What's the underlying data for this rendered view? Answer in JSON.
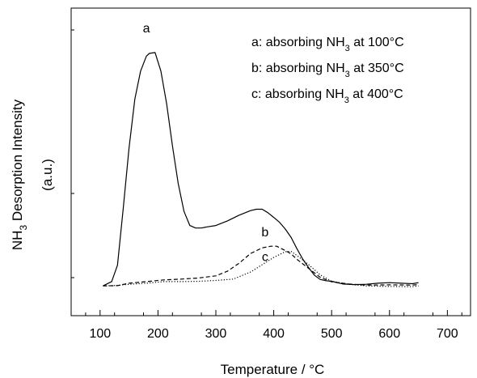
{
  "chart_data": {
    "type": "line",
    "xlabel": "Temperature / °C",
    "ylabel": "NH3 Desorption Intensity",
    "ylabel_sub_index": "3",
    "ylabel_unit": "(a.u.)",
    "xlim": [
      50,
      740
    ],
    "ylim": [
      0,
      100
    ],
    "x_ticks": [
      100,
      200,
      300,
      400,
      500,
      600,
      700
    ],
    "y_tick_labels": "none (arbitrary units)",
    "legend": {
      "placement": "top-right",
      "entries": [
        {
          "prefix": "a: absorbing NH",
          "sub": "3",
          "suffix": " at 100°C"
        },
        {
          "prefix": "b: absorbing NH",
          "sub": "3",
          "suffix": " at 350°C"
        },
        {
          "prefix": "c: absorbing NH",
          "sub": "3",
          "suffix": " at 400°C"
        }
      ]
    },
    "series": [
      {
        "name": "a",
        "line_style": "solid",
        "x": [
          105,
          120,
          130,
          140,
          150,
          160,
          170,
          180,
          185,
          195,
          205,
          215,
          225,
          235,
          245,
          255,
          265,
          275,
          285,
          300,
          320,
          340,
          360,
          370,
          380,
          390,
          400,
          410,
          420,
          430,
          440,
          450,
          460,
          470,
          480,
          490,
          500,
          520,
          540,
          560,
          580,
          600,
          620,
          640,
          650
        ],
        "y": [
          3.8,
          5.4,
          11.4,
          32.2,
          54.5,
          72.5,
          82.8,
          88.3,
          89.3,
          89.6,
          82.8,
          70.8,
          55.3,
          41.5,
          31.2,
          26.0,
          25.1,
          25.1,
          25.5,
          26.0,
          27.7,
          29.8,
          31.5,
          32.0,
          32.0,
          30.7,
          29.0,
          27.2,
          24.7,
          21.6,
          17.5,
          13.7,
          10.6,
          7.8,
          6.2,
          5.7,
          5.5,
          4.5,
          4.3,
          4.4,
          4.8,
          5.0,
          4.8,
          4.6,
          5.0
        ]
      },
      {
        "name": "b",
        "line_style": "dashed",
        "x": [
          105,
          130,
          150,
          180,
          210,
          240,
          270,
          300,
          320,
          340,
          360,
          380,
          395,
          405,
          420,
          430,
          440,
          460,
          480,
          500,
          530,
          560,
          600,
          640,
          650
        ],
        "y": [
          3.8,
          3.9,
          4.8,
          5.4,
          6.0,
          6.3,
          6.7,
          7.5,
          9.2,
          12.1,
          15.7,
          17.8,
          18.4,
          18.4,
          16.8,
          15.6,
          13.6,
          10.3,
          7.0,
          5.3,
          4.5,
          4.1,
          4.2,
          4.1,
          4.3
        ]
      },
      {
        "name": "c",
        "line_style": "dotted",
        "x": [
          105,
          130,
          150,
          180,
          210,
          240,
          270,
          300,
          330,
          360,
          380,
          400,
          420,
          430,
          440,
          460,
          480,
          500,
          530,
          560,
          600,
          640,
          650
        ],
        "y": [
          3.8,
          4.0,
          4.4,
          4.8,
          5.4,
          5.4,
          5.5,
          5.8,
          6.3,
          8.9,
          11.6,
          14.3,
          16.4,
          16.5,
          15.0,
          11.7,
          7.9,
          5.5,
          4.4,
          3.8,
          3.6,
          3.5,
          3.8
        ]
      }
    ],
    "annotations": [
      {
        "text": "a",
        "x": 180,
        "y": 97
      },
      {
        "text": "b",
        "x": 385,
        "y": 22
      },
      {
        "text": "c",
        "x": 385,
        "y": 13
      }
    ],
    "grid": false
  }
}
